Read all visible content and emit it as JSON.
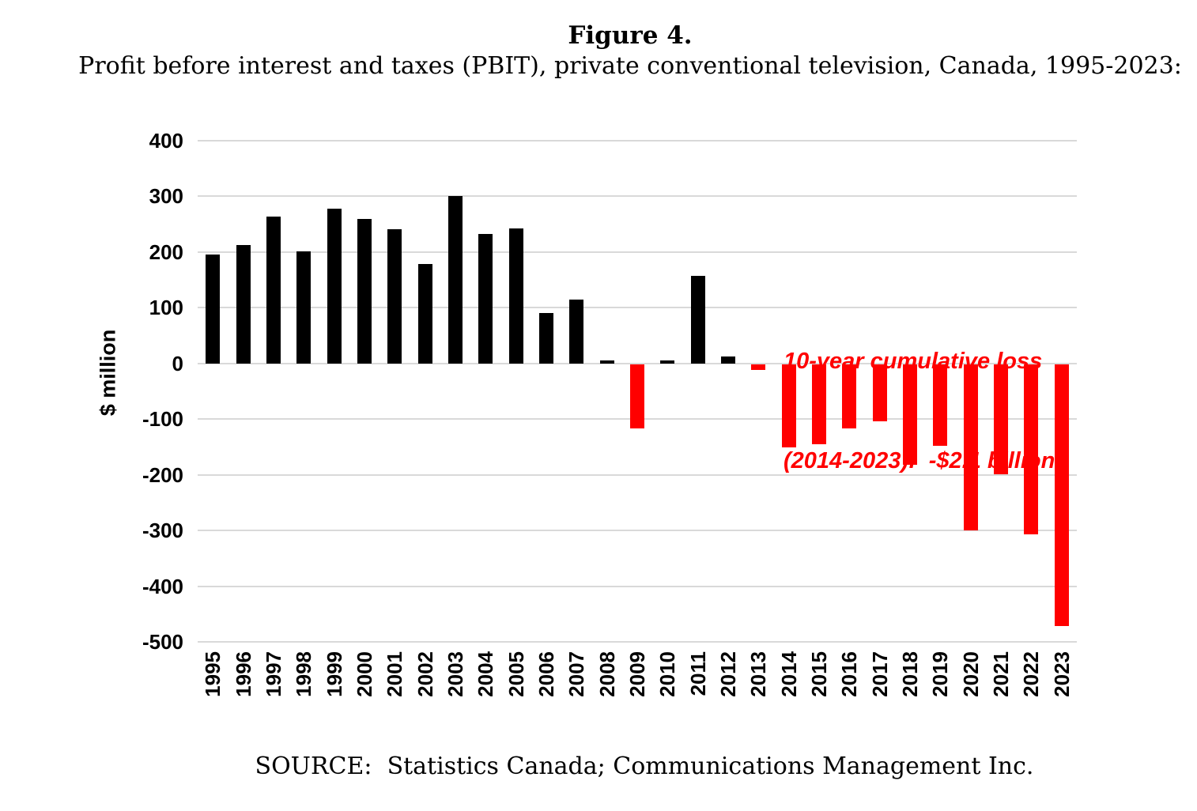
{
  "header": {
    "title": "Figure 4.",
    "subtitle": "Profit before interest and taxes (PBIT), private conventional television, Canada, 1995-2023:"
  },
  "annotation": {
    "line1": "10-year cumulative loss",
    "line2": "(2014-2023):  -$2.1 billion",
    "color": "#FF0000"
  },
  "footer": {
    "source": "SOURCE:  Statistics Canada; Communications Management Inc."
  },
  "chart_data": {
    "type": "bar",
    "title": "Profit before interest and taxes (PBIT), private conventional television, Canada, 1995-2023",
    "xlabel": "",
    "ylabel": "$ million",
    "categories": [
      "1995",
      "1996",
      "1997",
      "1998",
      "1999",
      "2000",
      "2001",
      "2002",
      "2003",
      "2004",
      "2005",
      "2006",
      "2007",
      "2008",
      "2009",
      "2010",
      "2011",
      "2012",
      "2013",
      "2014",
      "2015",
      "2016",
      "2017",
      "2018",
      "2019",
      "2020",
      "2021",
      "2022",
      "2023"
    ],
    "values": [
      196,
      213,
      264,
      201,
      278,
      260,
      241,
      178,
      300,
      232,
      243,
      90,
      115,
      5,
      -116,
      5,
      157,
      13,
      -10,
      -150,
      -144,
      -116,
      -103,
      -180,
      -146,
      -299,
      -197,
      -306,
      -470
    ],
    "ylim": [
      -500,
      400
    ],
    "ytick_step": 100,
    "grid": true,
    "legend": "none",
    "positive_color": "#000000",
    "negative_color": "#FF0000",
    "gridline_color": "#D9D9D9"
  }
}
